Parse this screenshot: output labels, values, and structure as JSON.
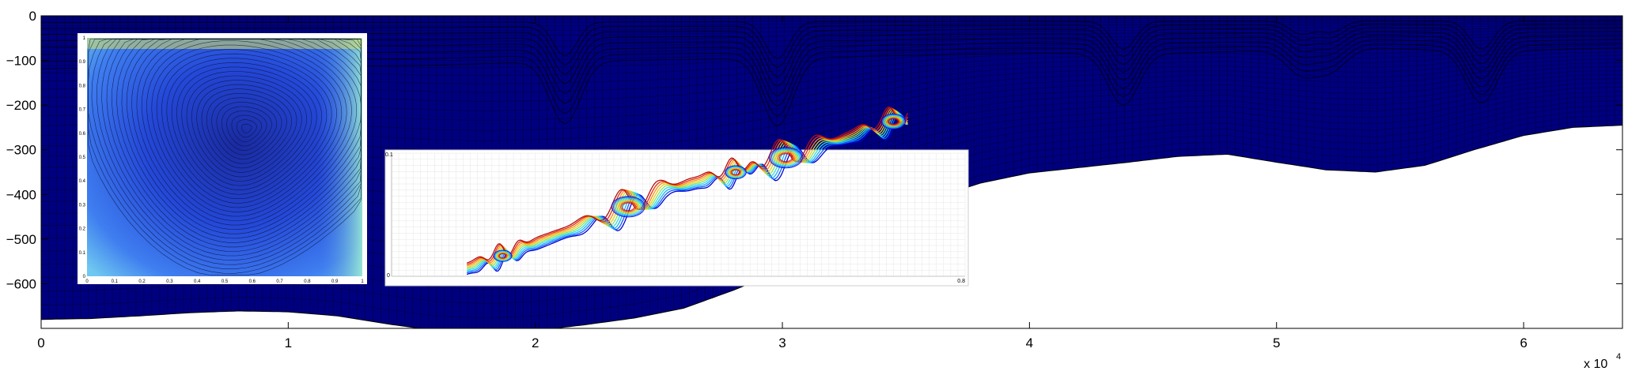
{
  "chart_data": [
    {
      "type": "heatmap",
      "description_role": "main-ocean-section",
      "x_ticks": [
        0,
        1,
        2,
        3,
        4,
        5,
        6
      ],
      "x_tick_labels": [
        "0",
        "1",
        "2",
        "3",
        "4",
        "5",
        "6"
      ],
      "x_multiplier_base": "x 10",
      "x_multiplier_exp": "4",
      "xlim": [
        0,
        64000
      ],
      "y_ticks": [
        0,
        -100,
        -200,
        -300,
        -400,
        -500,
        -600
      ],
      "y_tick_labels": [
        "0",
        "−100",
        "−200",
        "−300",
        "−400",
        "−500",
        "−600"
      ],
      "ylim": [
        -700,
        0
      ],
      "grid": true,
      "colormap": [
        "#00007f",
        "#0000ff",
        "#007fff",
        "#00ffff",
        "#7fff7f",
        "#ffff00",
        "#ff7f00",
        "#ff0000",
        "#7f0000"
      ],
      "bathymetry": {
        "x": [
          0,
          2000,
          4000,
          6000,
          8000,
          10000,
          12000,
          14000,
          16000,
          18000,
          20000,
          22000,
          24000,
          26000,
          28000,
          30000,
          32000,
          34000,
          36000,
          38000,
          40000,
          42000,
          44000,
          46000,
          48000,
          50000,
          52000,
          54000,
          56000,
          58000,
          60000,
          62000,
          64000
        ],
        "y": [
          -680,
          -678,
          -672,
          -665,
          -661,
          -663,
          -672,
          -690,
          -705,
          -710,
          -705,
          -692,
          -677,
          -655,
          -615,
          -570,
          -515,
          -460,
          -410,
          -375,
          -352,
          -340,
          -328,
          -315,
          -310,
          -328,
          -345,
          -350,
          -335,
          -300,
          -268,
          -250,
          -245
        ]
      },
      "mixed_layer_floor": {
        "x": [
          0,
          8000,
          16000,
          20000,
          24000,
          28000,
          32000,
          36000,
          40000,
          43000,
          46000,
          50000,
          54000,
          58000,
          62000,
          64000
        ],
        "y": [
          -128,
          -125,
          -120,
          -112,
          -108,
          -104,
          -100,
          -95,
          -90,
          -92,
          -90,
          -84,
          -78,
          -86,
          -80,
          -78
        ]
      },
      "plumes": [
        {
          "x": 21200,
          "depth": -260
        },
        {
          "x": 29800,
          "depth": -265
        },
        {
          "x": 43800,
          "depth": -215
        },
        {
          "x": 58300,
          "depth": -210
        },
        {
          "x": 51000,
          "depth": -140
        },
        {
          "x": 52200,
          "depth": -130
        }
      ]
    },
    {
      "type": "heatmap",
      "description_role": "inset-cavity-flow",
      "x_tick_labels": [
        "0",
        "0.1",
        "0.2",
        "0.3",
        "0.4",
        "0.5",
        "0.6",
        "0.7",
        "0.8",
        "0.9",
        "1"
      ],
      "y_tick_labels": [
        "0",
        "0.1",
        "0.2",
        "0.3",
        "0.4",
        "0.5",
        "0.6",
        "0.7",
        "0.8",
        "0.9",
        "1"
      ],
      "xlim": [
        0,
        1
      ],
      "ylim": [
        0,
        1
      ],
      "vortex_center": [
        0.58,
        0.62
      ]
    },
    {
      "type": "line",
      "description_role": "inset-vortex-sheet",
      "x_tick_labels": [
        "0",
        "0.8"
      ],
      "y_tick_labels": [
        "0",
        "0.1"
      ],
      "xlim": [
        0,
        0.8
      ],
      "ylim": [
        0,
        0.1
      ],
      "series_colors": [
        "#0000d0",
        "#1060ff",
        "#20b0ff",
        "#30e0e0",
        "#90e060",
        "#e0d020",
        "#ff9010",
        "#e83010",
        "#b01010"
      ],
      "rolls": [
        {
          "x": 0.155,
          "size": 0.03
        },
        {
          "x": 0.33,
          "size": 0.055
        },
        {
          "x": 0.48,
          "size": 0.035
        },
        {
          "x": 0.55,
          "size": 0.055
        },
        {
          "x": 0.7,
          "size": 0.04
        }
      ]
    }
  ]
}
